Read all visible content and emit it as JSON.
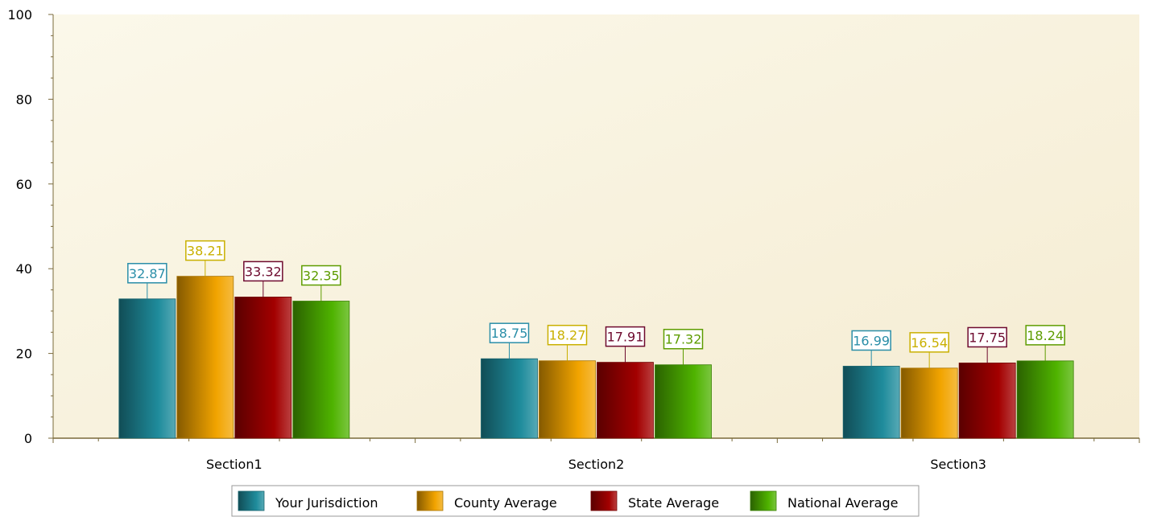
{
  "chart_data": {
    "type": "bar",
    "categories": [
      "Section1",
      "Section2",
      "Section3"
    ],
    "series": [
      {
        "name": "Your Jurisdiction",
        "color": "#1f8c9c",
        "label_color": "#2a8ea8",
        "values": [
          32.87,
          18.75,
          16.99
        ],
        "labels": [
          "32.87",
          "18.75",
          "16.99"
        ]
      },
      {
        "name": "County Average",
        "color": "#f2a400",
        "label_color": "#c9b000",
        "values": [
          38.21,
          18.27,
          16.54
        ],
        "labels": [
          "38.21",
          "18.27",
          "16.54"
        ]
      },
      {
        "name": "State Average",
        "color": "#a30000",
        "label_color": "#6e0a2e",
        "values": [
          33.32,
          17.91,
          17.75
        ],
        "labels": [
          "33.32",
          "17.91",
          "17.75"
        ]
      },
      {
        "name": "National Average",
        "color": "#4fb300",
        "label_color": "#5e9c00",
        "values": [
          32.35,
          17.32,
          18.24
        ],
        "labels": [
          "32.35",
          "17.32",
          "18.24"
        ]
      }
    ],
    "y_ticks": [
      "0",
      "20",
      "40",
      "60",
      "80",
      "100"
    ],
    "ylim": [
      0,
      100
    ],
    "title": "",
    "xlabel": "",
    "ylabel": "",
    "grid": false,
    "legend_position": "bottom-center",
    "background_color": "#fbf6e4",
    "axis_color": "#7a6a3a"
  }
}
